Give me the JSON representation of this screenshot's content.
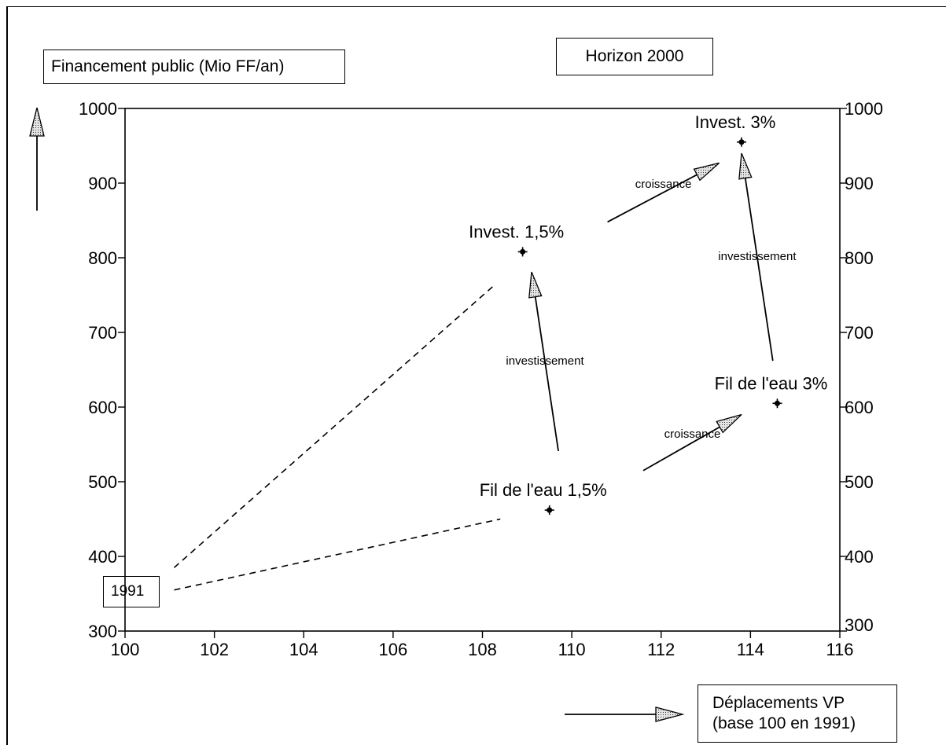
{
  "chart_data": {
    "type": "scatter",
    "title": "Horizon 2000",
    "ylabel": "Financement public (Mio FF/an)",
    "xlabel_line1": "Déplacements VP",
    "xlabel_line2": "(base 100 en 1991)",
    "xlim": [
      100,
      116
    ],
    "ylim": [
      300,
      1000
    ],
    "x_ticks": [
      100,
      102,
      104,
      106,
      108,
      110,
      112,
      114,
      116
    ],
    "x_tick_labels": [
      "100",
      "102",
      "104",
      "106",
      "108",
      "110",
      "112",
      "114",
      "116"
    ],
    "y_ticks": [
      300,
      400,
      500,
      600,
      700,
      800,
      900,
      1000
    ],
    "y_tick_labels": [
      "300",
      "400",
      "500",
      "600",
      "700",
      "800",
      "900",
      "1000"
    ],
    "right_axis": true,
    "grid": false,
    "start_label": "1991",
    "points": [
      {
        "label": "Invest. 3%",
        "x": 113.8,
        "y": 955
      },
      {
        "label": "Invest. 1,5%",
        "x": 108.9,
        "y": 808
      },
      {
        "label": "Fil de l'eau 3%",
        "x": 114.6,
        "y": 605
      },
      {
        "label": "Fil de l'eau 1,5%",
        "x": 109.5,
        "y": 462
      }
    ],
    "arrows": [
      {
        "label": "croissance",
        "from": [
          110.8,
          848
        ],
        "to": [
          113.3,
          927
        ]
      },
      {
        "label": "investissement",
        "from": [
          114.5,
          662
        ],
        "to": [
          113.8,
          940
        ]
      },
      {
        "label": "investissement",
        "from": [
          109.7,
          541
        ],
        "to": [
          109.1,
          781
        ]
      },
      {
        "label": "croissance",
        "from": [
          111.6,
          515
        ],
        "to": [
          113.8,
          590
        ]
      }
    ],
    "dashed_lines": [
      {
        "from": [
          101.1,
          385
        ],
        "to": [
          108.3,
          765
        ]
      },
      {
        "from": [
          101.1,
          355
        ],
        "to": [
          108.4,
          450
        ]
      }
    ]
  }
}
